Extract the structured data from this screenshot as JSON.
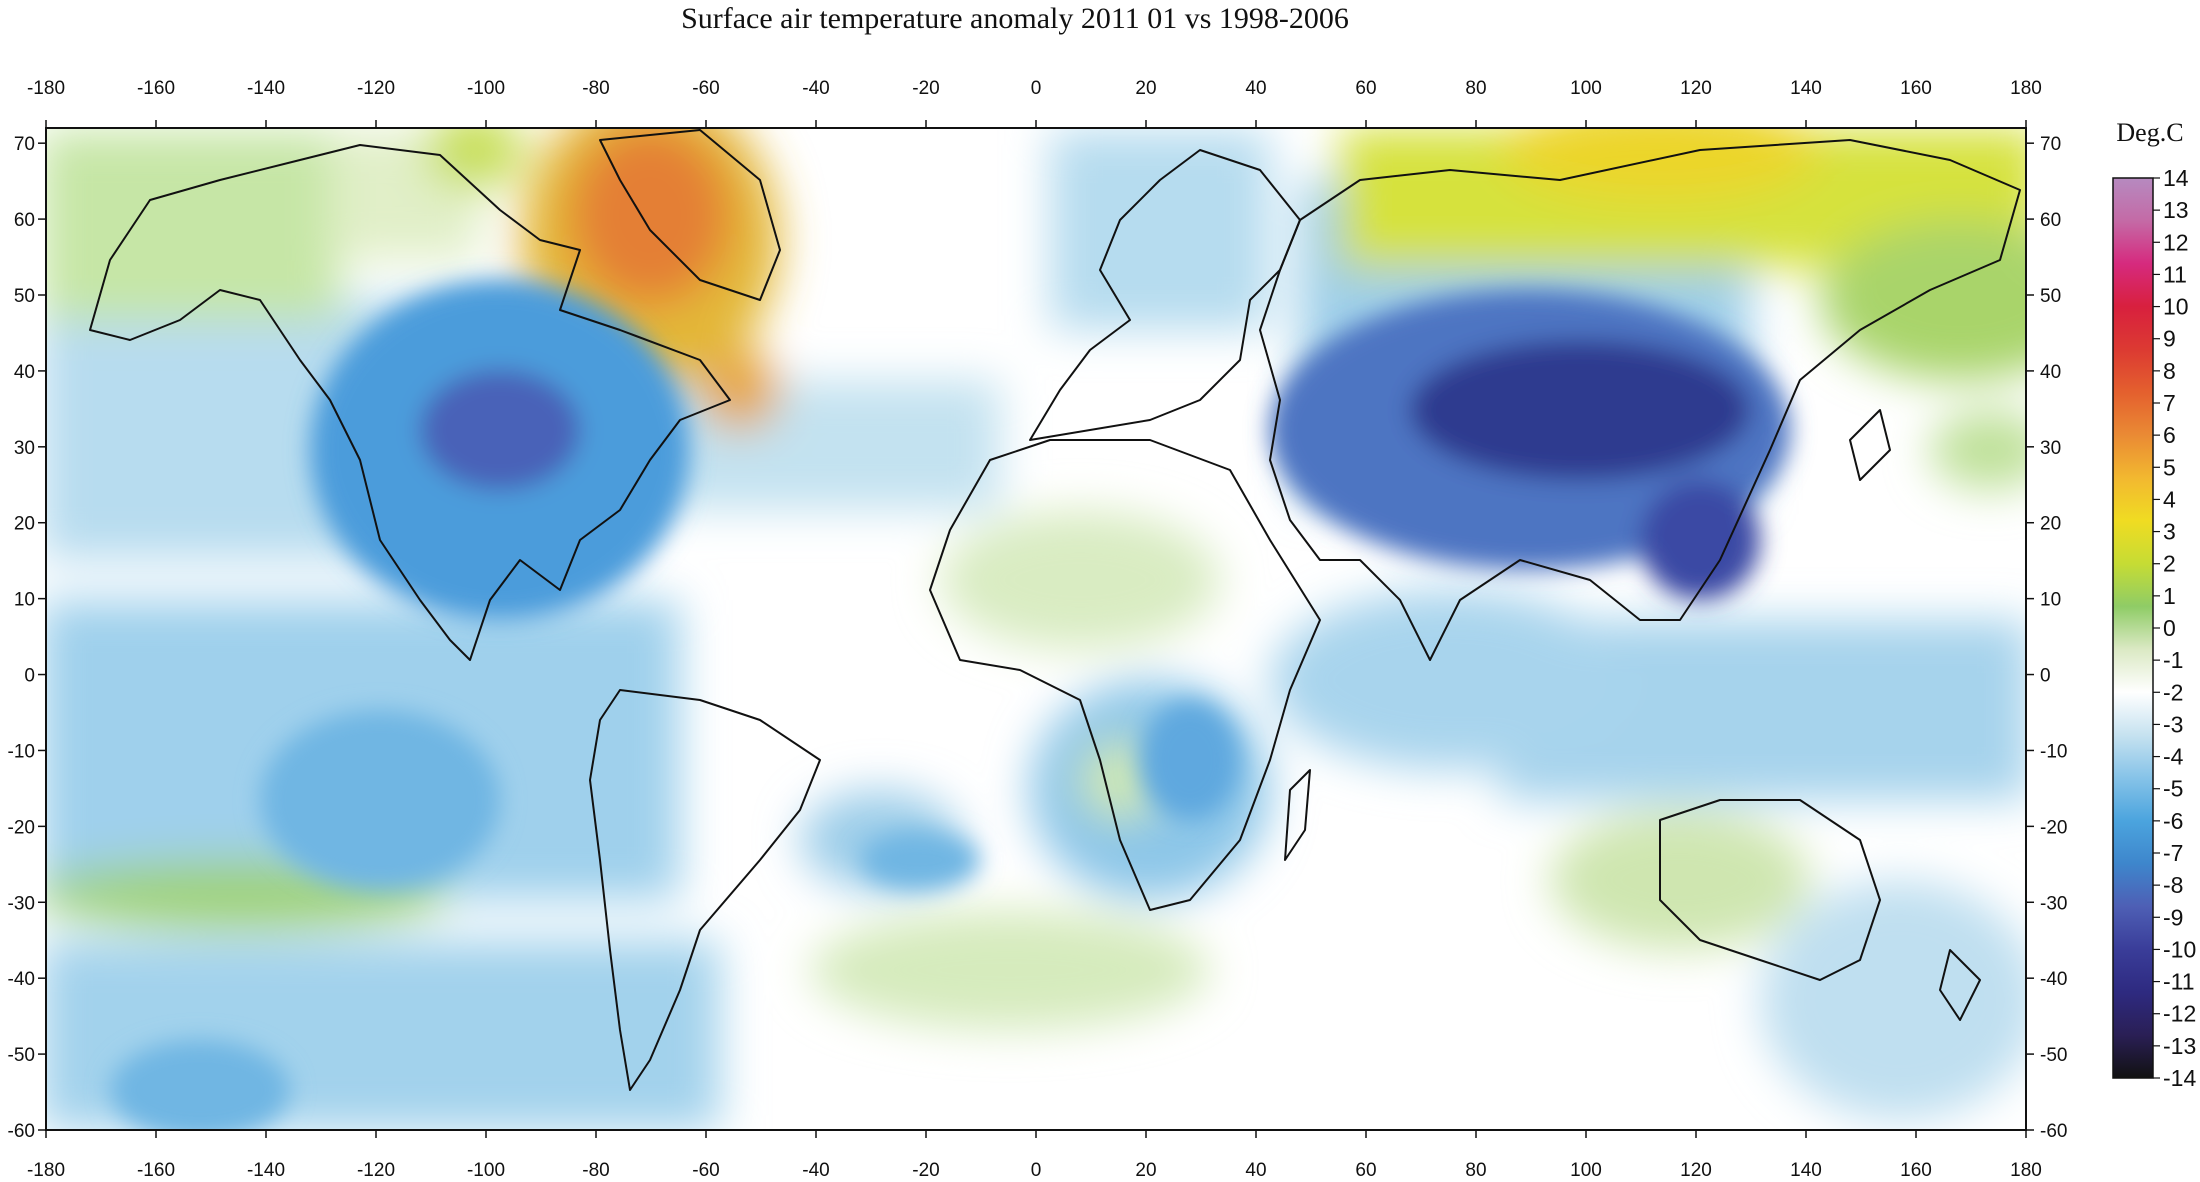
{
  "title": "Surface air temperature anomaly 2011 01 vs 1998-2006",
  "colorbar": {
    "unit": "Deg.C",
    "min": -14,
    "max": 14,
    "ticks": [
      14,
      13,
      12,
      11,
      10,
      9,
      8,
      7,
      6,
      5,
      4,
      3,
      2,
      1,
      0,
      -1,
      -2,
      -3,
      -4,
      -5,
      -6,
      -7,
      -8,
      -9,
      -10,
      -11,
      -12,
      -13,
      -14
    ],
    "colors": [
      "#111111",
      "#2a1f55",
      "#2e2a80",
      "#3a3d99",
      "#4e5fb5",
      "#3e86cc",
      "#4ba4de",
      "#86c3e8",
      "#c6e2f0",
      "#ffffff",
      "#dbe9c4",
      "#8fcc66",
      "#c6dc34",
      "#f0dc22",
      "#f2b830",
      "#ea8a34",
      "#e4602e",
      "#dc3a32",
      "#d8203e",
      "#d62a7e",
      "#c46aa6",
      "#b68ac0"
    ]
  },
  "axes": {
    "lon_ticks": [
      -180,
      -160,
      -140,
      -120,
      -100,
      -80,
      -60,
      -40,
      -20,
      0,
      20,
      40,
      60,
      80,
      100,
      120,
      140,
      160,
      180
    ],
    "lat_ticks": [
      70,
      60,
      50,
      40,
      30,
      20,
      10,
      0,
      -10,
      -20,
      -30,
      -40,
      -50,
      -60
    ],
    "lon_range": [
      -180,
      180
    ],
    "lat_range": [
      -60,
      72
    ]
  },
  "map": {
    "projection": "equirectangular",
    "features": "temperature anomaly shading with country borders"
  }
}
